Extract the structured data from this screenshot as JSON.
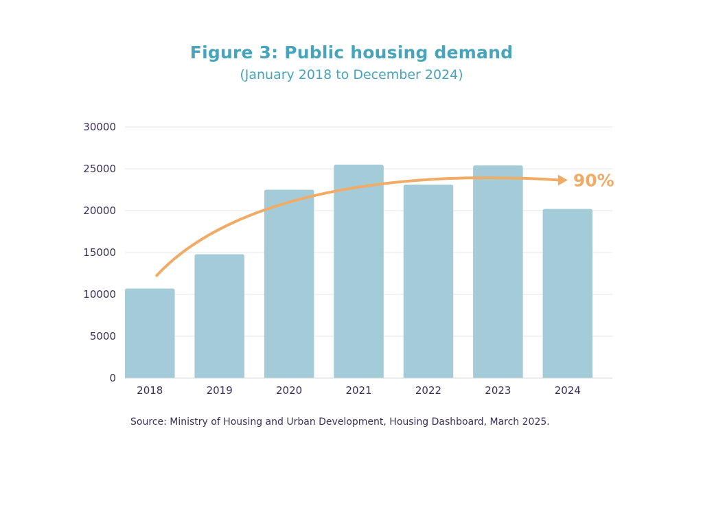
{
  "chart_data": {
    "type": "bar",
    "title": "Figure 3: Public housing demand",
    "subtitle": "(January 2018 to December 2024)",
    "categories": [
      "2018",
      "2019",
      "2020",
      "2021",
      "2022",
      "2023",
      "2024"
    ],
    "values": [
      10700,
      14800,
      22500,
      25500,
      23100,
      25400,
      20200
    ],
    "ylim": [
      0,
      30000
    ],
    "yticks": [
      0,
      5000,
      10000,
      15000,
      20000,
      25000,
      30000
    ],
    "ytick_labels": [
      "0",
      "5000",
      "10000",
      "15000",
      "20000",
      "25000",
      "30000"
    ],
    "xlabel": "",
    "ylabel": "",
    "grid": true,
    "legend": "none",
    "annotation": {
      "label": "90%",
      "trend": "increasing",
      "arrow": "curved arrow rising from 2018 bar to the right of 2024"
    },
    "colors": {
      "bar": "#a3cbd8",
      "trend_arrow": "#f0ac66",
      "title": "#47a4ba",
      "text": "#3a2f5b",
      "grid": "#e6e6e6"
    }
  },
  "source_text": "Source: Ministry of Housing and Urban Development, Housing Dashboard, March 2025."
}
